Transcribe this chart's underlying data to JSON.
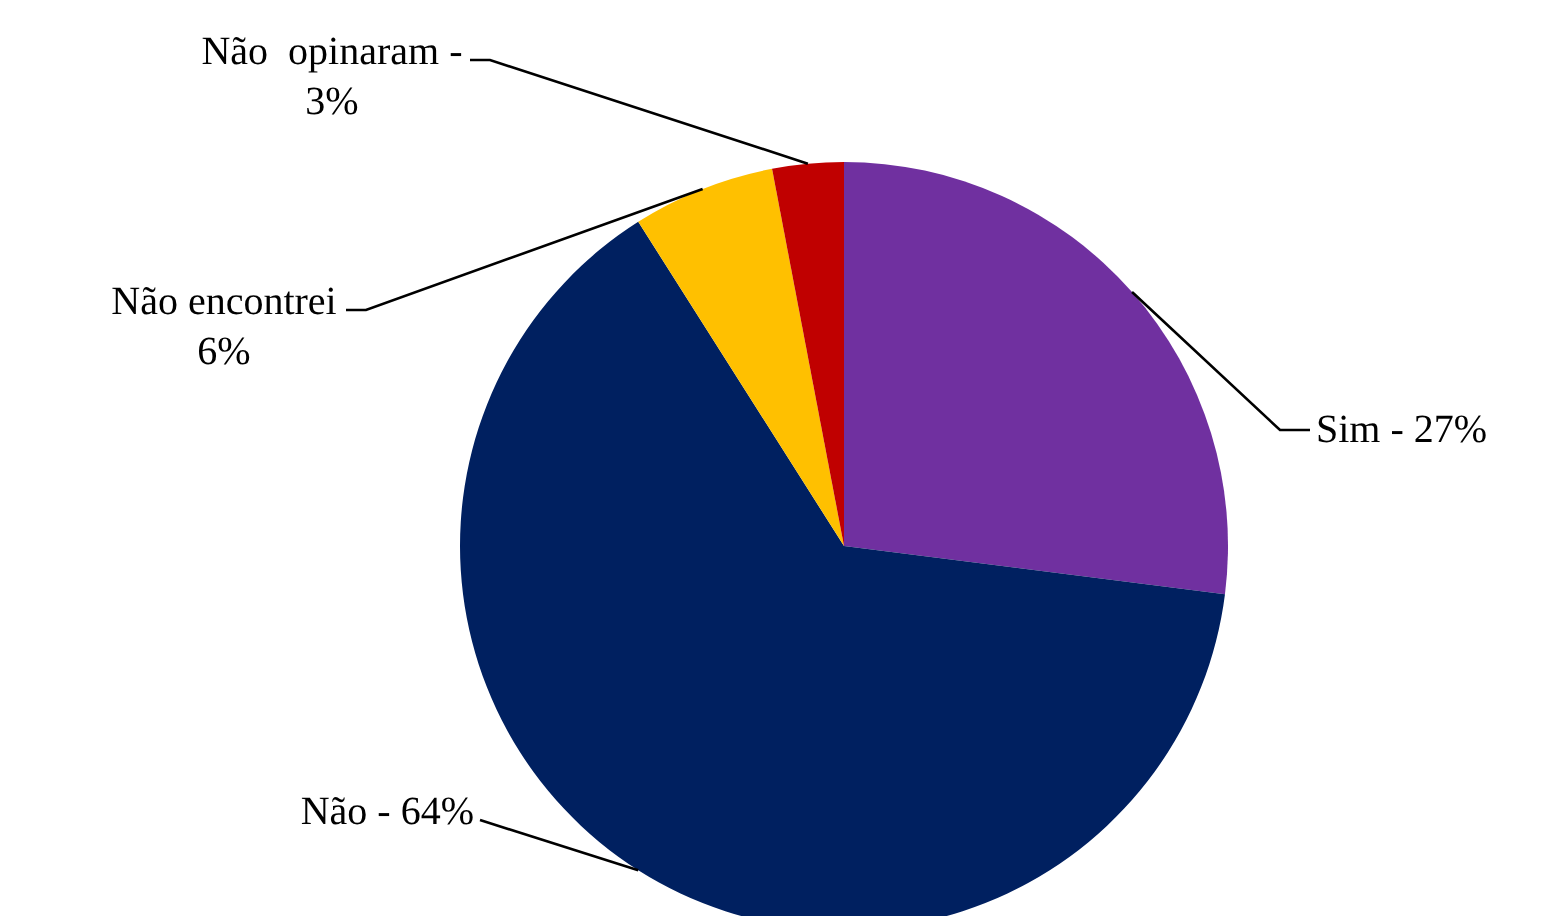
{
  "chart_data": {
    "type": "pie",
    "categories": [
      "Sim -",
      "Não -",
      "Não encontrei",
      "Não  opinaram -"
    ],
    "values": [
      27,
      64,
      6,
      3
    ],
    "value_labels": [
      "27%",
      "64%",
      "6%",
      "3%"
    ],
    "colors": [
      "#7030a0",
      "#002060",
      "#ffc000",
      "#c00000"
    ]
  }
}
